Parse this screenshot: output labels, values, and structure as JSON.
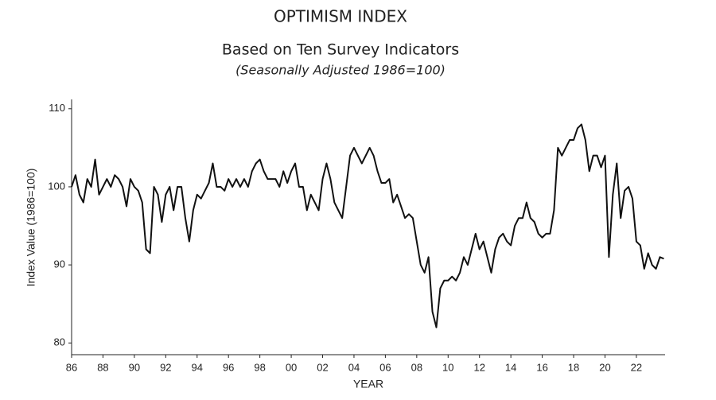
{
  "chart_data": {
    "type": "line",
    "title": "OPTIMISM INDEX",
    "subtitle": "Based on Ten Survey Indicators",
    "note": "(Seasonally Adjusted 1986=100)",
    "ylabel": "Index Value (1986=100)",
    "xlabel": "YEAR",
    "xlim": [
      1986,
      2023.83
    ],
    "ylim": [
      78.5,
      111.2
    ],
    "yticks": [
      80,
      90,
      100,
      110
    ],
    "xticks": [
      {
        "value": 1986,
        "label": "86"
      },
      {
        "value": 1988,
        "label": "88"
      },
      {
        "value": 1990,
        "label": "90"
      },
      {
        "value": 1992,
        "label": "92"
      },
      {
        "value": 1994,
        "label": "94"
      },
      {
        "value": 1996,
        "label": "96"
      },
      {
        "value": 1998,
        "label": "98"
      },
      {
        "value": 2000,
        "label": "00"
      },
      {
        "value": 2002,
        "label": "02"
      },
      {
        "value": 2004,
        "label": "04"
      },
      {
        "value": 2006,
        "label": "06"
      },
      {
        "value": 2008,
        "label": "08"
      },
      {
        "value": 2010,
        "label": "10"
      },
      {
        "value": 2012,
        "label": "12"
      },
      {
        "value": 2014,
        "label": "14"
      },
      {
        "value": 2016,
        "label": "16"
      },
      {
        "value": 2018,
        "label": "18"
      },
      {
        "value": 2020,
        "label": "20"
      },
      {
        "value": 2022,
        "label": "22"
      }
    ],
    "color": "#111111",
    "x": [
      1986,
      1986.25,
      1986.5,
      1986.75,
      1987,
      1987.25,
      1987.5,
      1987.75,
      1988,
      1988.25,
      1988.5,
      1988.75,
      1989,
      1989.25,
      1989.5,
      1989.75,
      1990,
      1990.25,
      1990.5,
      1990.75,
      1991,
      1991.25,
      1991.5,
      1991.75,
      1992,
      1992.25,
      1992.5,
      1992.75,
      1993,
      1993.25,
      1993.5,
      1993.75,
      1994,
      1994.25,
      1994.5,
      1994.75,
      1995,
      1995.25,
      1995.5,
      1995.75,
      1996,
      1996.25,
      1996.5,
      1996.75,
      1997,
      1997.25,
      1997.5,
      1997.75,
      1998,
      1998.25,
      1998.5,
      1998.75,
      1999,
      1999.25,
      1999.5,
      1999.75,
      2000,
      2000.25,
      2000.5,
      2000.75,
      2001,
      2001.25,
      2001.5,
      2001.75,
      2002,
      2002.25,
      2002.5,
      2002.75,
      2003,
      2003.25,
      2003.5,
      2003.75,
      2004,
      2004.25,
      2004.5,
      2004.75,
      2005,
      2005.25,
      2005.5,
      2005.75,
      2006,
      2006.25,
      2006.5,
      2006.75,
      2007,
      2007.25,
      2007.5,
      2007.75,
      2008,
      2008.25,
      2008.5,
      2008.75,
      2009,
      2009.25,
      2009.5,
      2009.75,
      2010,
      2010.25,
      2010.5,
      2010.75,
      2011,
      2011.25,
      2011.5,
      2011.75,
      2012,
      2012.25,
      2012.5,
      2012.75,
      2013,
      2013.25,
      2013.5,
      2013.75,
      2014,
      2014.25,
      2014.5,
      2014.75,
      2015,
      2015.25,
      2015.5,
      2015.75,
      2016,
      2016.25,
      2016.5,
      2016.75,
      2017,
      2017.25,
      2017.5,
      2017.75,
      2018,
      2018.25,
      2018.5,
      2018.75,
      2019,
      2019.25,
      2019.5,
      2019.75,
      2020,
      2020.25,
      2020.5,
      2020.75,
      2021,
      2021.25,
      2021.5,
      2021.75,
      2022,
      2022.25,
      2022.5,
      2022.75,
      2023,
      2023.25,
      2023.5,
      2023.75
    ],
    "values": [
      100,
      101.5,
      99,
      98,
      101,
      100,
      103.5,
      99,
      100,
      101,
      100,
      101.5,
      101,
      100,
      97.5,
      101,
      100,
      99.5,
      98,
      92,
      91.5,
      100,
      99,
      95.5,
      99,
      100,
      97,
      100,
      100,
      96,
      93,
      97,
      99,
      98.5,
      99.5,
      100.5,
      103,
      100,
      100,
      99.5,
      101,
      100,
      101,
      100,
      101,
      100,
      102,
      103,
      103.5,
      102,
      101,
      101,
      101,
      100,
      102,
      100.5,
      102,
      103,
      100,
      100,
      97,
      99,
      98,
      97,
      101,
      103,
      101,
      98,
      97,
      96,
      100,
      104,
      105,
      104,
      103,
      104,
      105,
      104,
      102,
      100.5,
      100.5,
      101,
      98,
      99,
      97.5,
      96,
      96.5,
      96,
      93,
      90,
      89,
      91,
      84,
      82,
      87,
      88,
      88,
      88.5,
      88,
      89,
      91,
      90,
      92,
      94,
      92,
      93,
      91,
      89,
      92,
      93.5,
      94,
      93,
      92.5,
      95,
      96,
      96,
      98,
      96,
      95.5,
      94,
      93.5,
      94,
      94,
      97,
      105,
      104,
      105,
      106,
      106,
      107.5,
      108,
      106,
      102,
      104,
      104,
      102.5,
      104,
      91,
      99,
      103,
      96,
      99.5,
      100,
      98.5,
      93,
      92.5,
      89.5,
      91.5,
      90,
      89.5,
      91,
      90.8
    ]
  }
}
